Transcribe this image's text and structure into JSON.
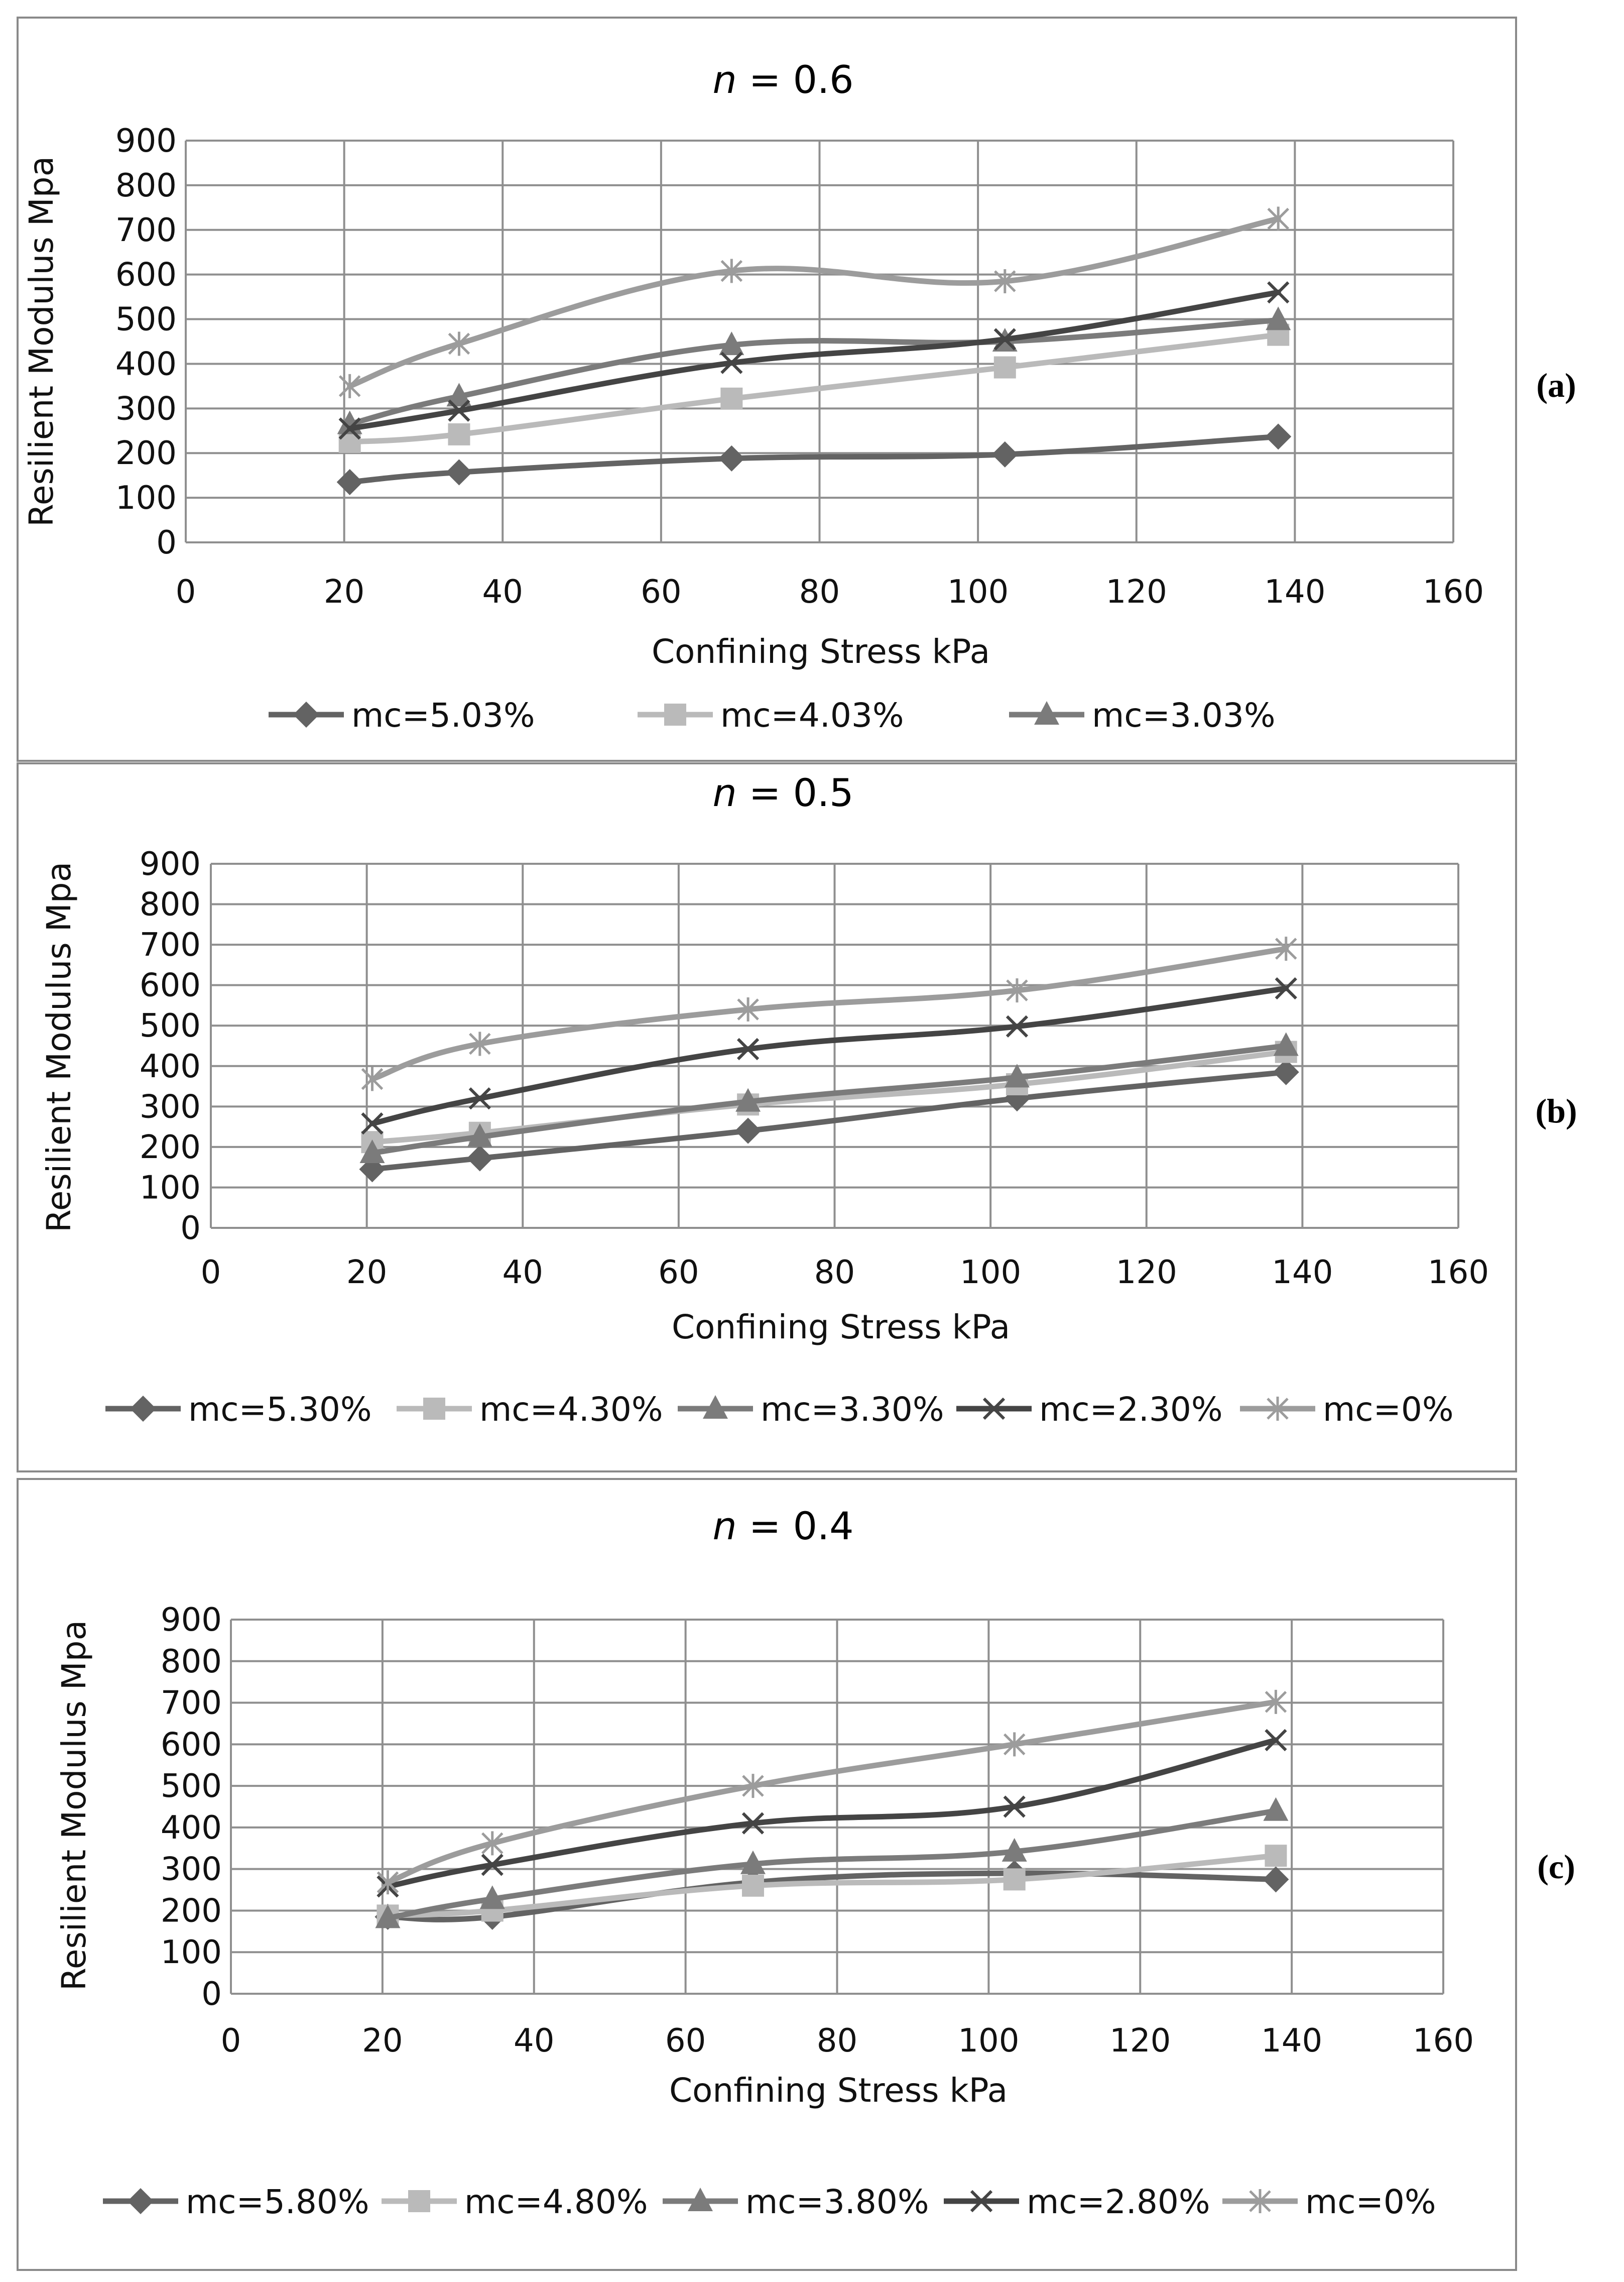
{
  "chart_data": [
    {
      "type": "line",
      "panel_label": "(a)",
      "title_prefix": "n",
      "title_value": " = 0.6",
      "xlabel": "Confining Stress kPa",
      "ylabel": "Resilient Modulus Mpa",
      "xlim": [
        0,
        160
      ],
      "ylim": [
        0,
        900
      ],
      "xticks": [
        "0",
        "20",
        "40",
        "60",
        "80",
        "100",
        "120",
        "140",
        "160"
      ],
      "yticks": [
        "0",
        "100",
        "200",
        "300",
        "400",
        "500",
        "600",
        "700",
        "800",
        "900"
      ],
      "grid": true,
      "legend_position": "bottom",
      "x": [
        20.7,
        34.5,
        68.9,
        103.4,
        137.9
      ],
      "series": [
        {
          "name": "mc=5.03%",
          "marker": "diamond",
          "color": "#636363",
          "values": [
            135,
            157,
            188,
            197,
            237
          ]
        },
        {
          "name": "mc=4.03%",
          "marker": "square",
          "color": "#bababa",
          "values": [
            225,
            242,
            322,
            392,
            465
          ]
        },
        {
          "name": "mc=3.03%",
          "marker": "triangle",
          "color": "#7b7b7b",
          "values": [
            265,
            327,
            442,
            450,
            498
          ]
        },
        {
          "name": "",
          "marker": "x",
          "color": "#444444",
          "values": [
            255,
            295,
            402,
            455,
            560
          ]
        },
        {
          "name": "",
          "marker": "star",
          "color": "#9c9c9c",
          "values": [
            350,
            445,
            608,
            585,
            725
          ]
        }
      ]
    },
    {
      "type": "line",
      "panel_label": "(b)",
      "title_prefix": "n",
      "title_value": " = 0.5",
      "xlabel": "Confining Stress kPa",
      "ylabel": "Resilient Modulus Mpa",
      "xlim": [
        0,
        160
      ],
      "ylim": [
        0,
        900
      ],
      "xticks": [
        "0",
        "20",
        "40",
        "60",
        "80",
        "100",
        "120",
        "140",
        "160"
      ],
      "yticks": [
        "0",
        "100",
        "200",
        "300",
        "400",
        "500",
        "600",
        "700",
        "800",
        "900"
      ],
      "grid": true,
      "legend_position": "bottom",
      "x": [
        20.7,
        34.5,
        68.9,
        103.4,
        137.9
      ],
      "series": [
        {
          "name": "mc=5.30%",
          "marker": "diamond",
          "color": "#636363",
          "values": [
            145,
            172,
            240,
            320,
            385
          ]
        },
        {
          "name": "mc=4.30%",
          "marker": "square",
          "color": "#bababa",
          "values": [
            212,
            235,
            305,
            355,
            435
          ]
        },
        {
          "name": "mc=3.30%",
          "marker": "triangle",
          "color": "#7b7b7b",
          "values": [
            185,
            225,
            312,
            372,
            450
          ]
        },
        {
          "name": "mc=2.30%",
          "marker": "x",
          "color": "#444444",
          "values": [
            258,
            320,
            442,
            498,
            592
          ]
        },
        {
          "name": "mc=0%",
          "marker": "star",
          "color": "#9c9c9c",
          "values": [
            368,
            455,
            540,
            587,
            690
          ]
        }
      ]
    },
    {
      "type": "line",
      "panel_label": "(c)",
      "title_prefix": "n",
      "title_value": " = 0.4",
      "xlabel": "Confining Stress kPa",
      "ylabel": "Resilient Modulus Mpa",
      "xlim": [
        0,
        160
      ],
      "ylim": [
        0,
        900
      ],
      "xticks": [
        "0",
        "20",
        "40",
        "60",
        "80",
        "100",
        "120",
        "140",
        "160"
      ],
      "yticks": [
        "0",
        "100",
        "200",
        "300",
        "400",
        "500",
        "600",
        "700",
        "800",
        "900"
      ],
      "grid": true,
      "legend_position": "bottom",
      "x": [
        20.7,
        34.5,
        68.9,
        103.4,
        137.9
      ],
      "series": [
        {
          "name": "mc=5.80%",
          "marker": "diamond",
          "color": "#636363",
          "values": [
            185,
            185,
            268,
            290,
            275
          ]
        },
        {
          "name": "mc=4.80%",
          "marker": "square",
          "color": "#bababa",
          "values": [
            188,
            200,
            260,
            275,
            332
          ]
        },
        {
          "name": "mc=3.80%",
          "marker": "triangle",
          "color": "#7b7b7b",
          "values": [
            182,
            228,
            312,
            342,
            440
          ]
        },
        {
          "name": "mc=2.80%",
          "marker": "x",
          "color": "#444444",
          "values": [
            258,
            310,
            410,
            450,
            610
          ]
        },
        {
          "name": "mc=0%",
          "marker": "star",
          "color": "#9c9c9c",
          "values": [
            268,
            362,
            500,
            600,
            702
          ]
        }
      ]
    }
  ]
}
